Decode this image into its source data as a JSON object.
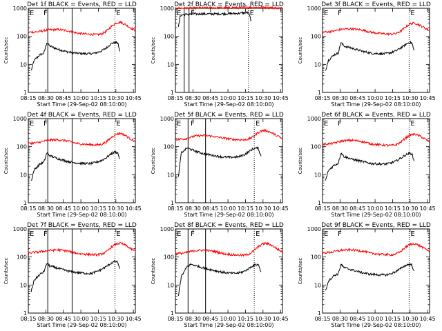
{
  "page": {
    "xlabel": "Start Time (29-Sep-02 08:10:00)",
    "ylabel": "Counts/sec",
    "x_tick_labels": [
      "08:15",
      "08:30",
      "08:45",
      "10:00",
      "10:15",
      "10:30",
      "10:45"
    ],
    "y_tick_labels": [
      "1",
      "10",
      "100",
      "1000"
    ],
    "marker_labels": [
      "E",
      "F",
      "E"
    ],
    "colors": {
      "events": "#000000",
      "lld": "#ff0000",
      "frame": "#000000",
      "background": "#ffffff"
    }
  },
  "chart_data": [
    {
      "type": "line",
      "scale": "log",
      "title": "Det 1f BLACK = Events, RED = LLD",
      "ylim": [
        1,
        1000
      ],
      "markers": {
        "solid": [
          2,
          4.5
        ],
        "dotted": [
          8.9
        ]
      },
      "series": [
        {
          "name": "Events",
          "color": "#000000",
          "x": [
            0.3,
            0.6,
            1.2,
            1.6,
            1.9,
            2.2,
            3.0,
            4.0,
            5.0,
            6.0,
            6.5,
            7.0,
            7.5,
            8.0,
            8.5,
            8.9,
            9.2,
            9.4
          ],
          "y": [
            6,
            14,
            22,
            25,
            60,
            45,
            35,
            28,
            25,
            24,
            24,
            26,
            30,
            38,
            55,
            60,
            58,
            30
          ]
        },
        {
          "name": "LLD",
          "color": "#ff0000",
          "x": [
            0.0,
            1.0,
            2.0,
            3.0,
            4.0,
            5.0,
            6.0,
            7.0,
            7.5,
            8.0,
            8.5,
            9.0,
            9.5,
            10.0,
            10.5,
            11.0
          ],
          "y": [
            140,
            145,
            170,
            175,
            160,
            130,
            120,
            115,
            120,
            150,
            220,
            300,
            320,
            260,
            200,
            160
          ]
        }
      ]
    },
    {
      "type": "line",
      "scale": "log",
      "title": "Det 2f BLACK = Events, RED = LLD",
      "ylim": [
        1,
        1000
      ],
      "markers": {
        "solid": [
          0.9,
          1.4
        ],
        "dotted": [
          7.5
        ]
      },
      "series": [
        {
          "name": "Events",
          "color": "#000000",
          "x": [
            0.3,
            0.5,
            1.0,
            2.0,
            3.0,
            4.0,
            5.0,
            6.0,
            6.5,
            7.0,
            7.5,
            7.8
          ],
          "y": [
            200,
            560,
            600,
            630,
            630,
            630,
            640,
            650,
            660,
            690,
            700,
            350
          ]
        },
        {
          "name": "LLD",
          "color": "#ff0000",
          "x": [
            0.0,
            2.0,
            4.0,
            6.0,
            8.0,
            9.0,
            10.0,
            11.0
          ],
          "y": [
            1000,
            1030,
            1050,
            1050,
            1080,
            1090,
            1050,
            1000
          ]
        }
      ]
    },
    {
      "type": "line",
      "scale": "log",
      "title": "Det 3f BLACK = Events, RED = LLD",
      "ylim": [
        1,
        1000
      ],
      "markers": {
        "solid": [],
        "dotted": [
          8.9
        ]
      },
      "series": [
        {
          "name": "Events",
          "color": "#000000",
          "x": [
            0.3,
            0.6,
            1.2,
            1.6,
            1.9,
            2.2,
            3.0,
            4.0,
            5.0,
            6.0,
            6.5,
            7.0,
            7.5,
            8.0,
            8.5,
            8.9,
            9.2,
            9.4
          ],
          "y": [
            6,
            14,
            22,
            25,
            60,
            45,
            38,
            30,
            25,
            24,
            24,
            26,
            30,
            38,
            50,
            60,
            58,
            30
          ]
        },
        {
          "name": "LLD",
          "color": "#ff0000",
          "x": [
            0.0,
            1.0,
            2.0,
            3.0,
            4.0,
            5.0,
            6.0,
            7.0,
            7.5,
            8.0,
            8.5,
            9.0,
            9.5,
            10.0,
            10.5,
            11.0
          ],
          "y": [
            140,
            150,
            180,
            185,
            170,
            140,
            125,
            120,
            125,
            150,
            210,
            280,
            300,
            250,
            200,
            160
          ]
        }
      ]
    },
    {
      "type": "line",
      "scale": "log",
      "title": "Det 4f BLACK = Events, RED = LLD",
      "ylim": [
        1,
        1000
      ],
      "markers": {
        "solid": [
          2,
          4.5
        ],
        "dotted": [
          8.9
        ]
      },
      "series": [
        {
          "name": "Events",
          "color": "#000000",
          "x": [
            0.3,
            0.6,
            1.2,
            1.6,
            1.9,
            2.2,
            3.0,
            4.0,
            5.0,
            6.0,
            6.5,
            7.0,
            7.5,
            8.0,
            8.5,
            8.9,
            9.2,
            9.4
          ],
          "y": [
            6,
            15,
            24,
            28,
            60,
            48,
            38,
            30,
            26,
            25,
            25,
            28,
            32,
            40,
            55,
            65,
            60,
            35
          ]
        },
        {
          "name": "LLD",
          "color": "#ff0000",
          "x": [
            0.0,
            1.0,
            2.0,
            3.0,
            4.0,
            5.0,
            6.0,
            7.0,
            7.5,
            8.0,
            8.5,
            9.0,
            9.5,
            10.0,
            10.5,
            11.0
          ],
          "y": [
            130,
            140,
            170,
            175,
            160,
            130,
            120,
            115,
            120,
            145,
            210,
            280,
            300,
            250,
            190,
            150
          ]
        }
      ]
    },
    {
      "type": "line",
      "scale": "log",
      "title": "Det 5f BLACK = Events, RED = LLD",
      "ylim": [
        1,
        1000
      ],
      "markers": {
        "solid": [
          1.3,
          3.1
        ],
        "dotted": [
          8.1
        ]
      },
      "series": [
        {
          "name": "Events",
          "color": "#000000",
          "x": [
            0.3,
            0.6,
            1.2,
            1.6,
            2.0,
            3.0,
            4.0,
            5.0,
            6.0,
            6.5,
            7.0,
            7.5,
            8.0,
            8.5,
            8.8
          ],
          "y": [
            8,
            60,
            90,
            80,
            70,
            55,
            48,
            42,
            42,
            44,
            50,
            65,
            85,
            90,
            45
          ]
        },
        {
          "name": "LLD",
          "color": "#ff0000",
          "x": [
            0.0,
            1.0,
            2.0,
            3.0,
            4.0,
            5.0,
            6.0,
            7.0,
            7.5,
            8.0,
            8.5,
            9.0,
            9.5,
            10.0,
            10.5,
            11.0
          ],
          "y": [
            180,
            190,
            240,
            250,
            230,
            200,
            180,
            175,
            185,
            230,
            320,
            380,
            360,
            300,
            240,
            190
          ]
        }
      ]
    },
    {
      "type": "line",
      "scale": "log",
      "title": "Det 6f BLACK = Events, RED = LLD",
      "ylim": [
        1,
        1000
      ],
      "markers": {
        "solid": [],
        "dotted": [
          8.9
        ]
      },
      "series": [
        {
          "name": "Events",
          "color": "#000000",
          "x": [
            0.3,
            0.6,
            1.2,
            1.6,
            1.9,
            2.2,
            3.0,
            4.0,
            5.0,
            6.0,
            6.5,
            7.0,
            7.5,
            8.0,
            8.5,
            8.9,
            9.2,
            9.4
          ],
          "y": [
            6,
            14,
            22,
            25,
            60,
            45,
            36,
            30,
            25,
            24,
            24,
            26,
            30,
            38,
            50,
            58,
            55,
            30
          ]
        },
        {
          "name": "LLD",
          "color": "#ff0000",
          "x": [
            0.0,
            1.0,
            2.0,
            3.0,
            4.0,
            5.0,
            6.0,
            7.0,
            7.5,
            8.0,
            8.5,
            9.0,
            9.5,
            10.0,
            10.5,
            11.0
          ],
          "y": [
            120,
            130,
            160,
            170,
            155,
            125,
            115,
            110,
            115,
            140,
            200,
            260,
            280,
            240,
            190,
            150
          ]
        }
      ]
    },
    {
      "type": "line",
      "scale": "log",
      "title": "Det 7f BLACK = Events, RED = LLD",
      "ylim": [
        1,
        1000
      ],
      "markers": {
        "solid": [
          2,
          4.5
        ],
        "dotted": [
          8.9
        ]
      },
      "series": [
        {
          "name": "Events",
          "color": "#000000",
          "x": [
            0.3,
            0.6,
            1.2,
            1.6,
            1.9,
            2.2,
            3.0,
            4.0,
            5.0,
            6.0,
            6.5,
            7.0,
            7.5,
            8.0,
            8.5,
            8.9,
            9.2,
            9.4
          ],
          "y": [
            6,
            15,
            24,
            30,
            60,
            48,
            40,
            32,
            28,
            26,
            26,
            30,
            36,
            45,
            60,
            70,
            65,
            35
          ]
        },
        {
          "name": "LLD",
          "color": "#ff0000",
          "x": [
            0.0,
            1.0,
            2.0,
            3.0,
            4.0,
            5.0,
            6.0,
            7.0,
            7.5,
            8.0,
            8.5,
            9.0,
            9.5,
            10.0,
            10.5,
            11.0
          ],
          "y": [
            140,
            150,
            170,
            180,
            165,
            135,
            125,
            120,
            125,
            150,
            220,
            290,
            310,
            260,
            200,
            160
          ]
        }
      ]
    },
    {
      "type": "line",
      "scale": "log",
      "title": "Det 8f BLACK = Events, RED = LLD",
      "ylim": [
        1,
        1000
      ],
      "markers": {
        "solid": [
          1.3,
          3.1
        ],
        "dotted": [
          8.1
        ]
      },
      "series": [
        {
          "name": "Events",
          "color": "#000000",
          "x": [
            0.3,
            0.6,
            1.2,
            1.6,
            2.0,
            3.0,
            4.0,
            5.0,
            6.0,
            6.5,
            7.0,
            7.5,
            8.0,
            8.5,
            8.8
          ],
          "y": [
            4,
            20,
            45,
            55,
            50,
            40,
            33,
            28,
            26,
            27,
            30,
            38,
            50,
            55,
            30
          ]
        },
        {
          "name": "LLD",
          "color": "#ff0000",
          "x": [
            0.0,
            1.0,
            2.0,
            3.0,
            4.0,
            5.0,
            6.0,
            7.0,
            7.5,
            8.0,
            8.5,
            9.0,
            9.5,
            10.0,
            10.5,
            11.0
          ],
          "y": [
            130,
            140,
            170,
            175,
            160,
            130,
            120,
            115,
            125,
            160,
            230,
            300,
            300,
            250,
            190,
            150
          ]
        }
      ]
    },
    {
      "type": "line",
      "scale": "log",
      "title": "Det 9f BLACK = Events, RED = LLD",
      "ylim": [
        1,
        1000
      ],
      "markers": {
        "solid": [],
        "dotted": [
          8.9
        ]
      },
      "series": [
        {
          "name": "Events",
          "color": "#000000",
          "x": [
            0.3,
            0.6,
            1.2,
            1.6,
            1.9,
            2.2,
            3.0,
            4.0,
            5.0,
            6.0,
            6.5,
            7.0,
            7.5,
            8.0,
            8.5,
            8.9,
            9.2,
            9.4
          ],
          "y": [
            6,
            14,
            22,
            25,
            55,
            42,
            35,
            28,
            24,
            23,
            23,
            25,
            30,
            38,
            50,
            55,
            52,
            30
          ]
        },
        {
          "name": "LLD",
          "color": "#ff0000",
          "x": [
            0.0,
            1.0,
            2.0,
            3.0,
            4.0,
            5.0,
            6.0,
            7.0,
            7.5,
            8.0,
            8.5,
            9.0,
            9.5,
            10.0,
            10.5,
            11.0
          ],
          "y": [
            140,
            150,
            175,
            180,
            165,
            135,
            125,
            120,
            125,
            155,
            220,
            280,
            300,
            250,
            200,
            160
          ]
        }
      ]
    }
  ]
}
